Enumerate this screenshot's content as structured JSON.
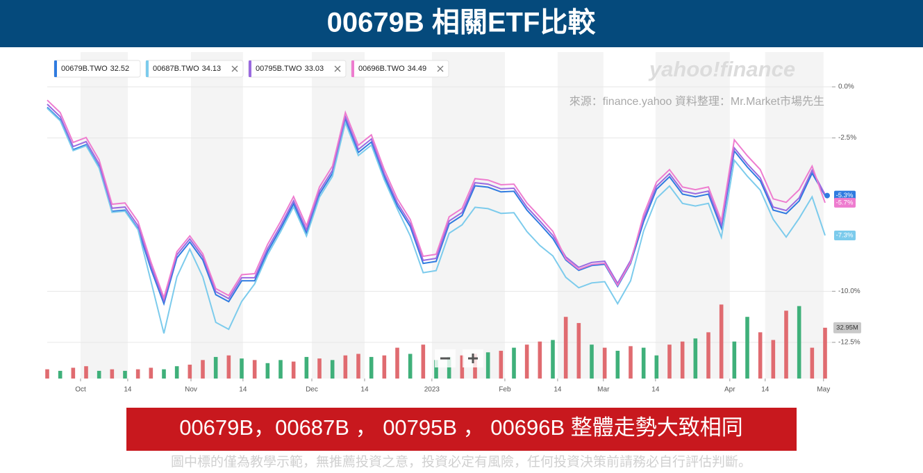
{
  "header": {
    "title": "00679B 相關ETF比較"
  },
  "chart_data": {
    "type": "line",
    "watermark": "yahoo!finance",
    "source": "來源：finance.yahoo 資料整理：Mr.Market市場先生",
    "xlim": [
      0,
      60
    ],
    "xticks": [
      {
        "value": 2.57,
        "label": "Oct"
      },
      {
        "value": 6.21,
        "label": "14"
      },
      {
        "value": 11.09,
        "label": "Nov"
      },
      {
        "value": 15.1,
        "label": "14"
      },
      {
        "value": 20.41,
        "label": "Dec"
      },
      {
        "value": 24.48,
        "label": "14"
      },
      {
        "value": 29.67,
        "label": "2023"
      },
      {
        "value": 35.3,
        "label": "Feb"
      },
      {
        "value": 39.37,
        "label": "14"
      },
      {
        "value": 42.9,
        "label": "Mar"
      },
      {
        "value": 46.92,
        "label": "14"
      },
      {
        "value": 52.65,
        "label": "Apr"
      },
      {
        "value": 55.38,
        "label": "14"
      },
      {
        "value": 59.88,
        "label": "May"
      }
    ],
    "ylim": [
      -14.27,
      1.7
    ],
    "yticks": [
      {
        "value": 0,
        "label": "0.0%"
      },
      {
        "value": -2.5,
        "label": "-2.5%"
      },
      {
        "value": -10,
        "label": "-10.0%"
      },
      {
        "value": -12.5,
        "label": "-12.5%"
      }
    ],
    "grid": true,
    "series": [
      {
        "name": "00679B.TWO",
        "price": 32.52,
        "color": "#2f7be0",
        "end_label": "-5.3%",
        "values": [
          -1.0,
          -1.61,
          -3.07,
          -2.83,
          -3.92,
          -6.09,
          -6.03,
          -6.94,
          -8.91,
          -10.61,
          -8.37,
          -7.59,
          -8.47,
          -10.17,
          -10.51,
          -9.49,
          -9.49,
          -8.06,
          -6.94,
          -5.72,
          -7.15,
          -5.25,
          -4.23,
          -1.61,
          -3.21,
          -2.7,
          -4.4,
          -5.82,
          -6.84,
          -8.64,
          -8.54,
          -6.71,
          -6.3,
          -4.84,
          -4.91,
          -5.14,
          -5.11,
          -6.03,
          -6.71,
          -7.42,
          -8.47,
          -8.98,
          -8.74,
          -8.68,
          -9.76,
          -8.64,
          -6.6,
          -5.01,
          -4.4,
          -5.25,
          -5.38,
          -5.25,
          -6.91,
          -3.14,
          -3.92,
          -4.6,
          -6.03,
          -6.2,
          -5.58,
          -4.23,
          -5.32
        ]
      },
      {
        "name": "00687B.TWO",
        "price": 34.13,
        "color": "#7ccbec",
        "end_label": "-7.3%",
        "values": [
          -1.05,
          -1.66,
          -3.12,
          -2.88,
          -3.97,
          -6.14,
          -6.08,
          -6.99,
          -9.5,
          -12.06,
          -9.3,
          -7.94,
          -9.3,
          -11.52,
          -11.86,
          -10.5,
          -9.64,
          -8.21,
          -7.09,
          -5.87,
          -7.3,
          -5.4,
          -4.38,
          -1.76,
          -3.36,
          -2.85,
          -4.55,
          -5.97,
          -7.29,
          -9.09,
          -8.99,
          -7.16,
          -6.75,
          -5.89,
          -5.96,
          -6.19,
          -6.16,
          -7.08,
          -7.76,
          -8.27,
          -9.32,
          -9.83,
          -9.59,
          -9.53,
          -10.61,
          -9.49,
          -7.05,
          -5.46,
          -4.85,
          -5.7,
          -5.83,
          -5.7,
          -7.36,
          -3.59,
          -4.37,
          -5.05,
          -6.48,
          -7.35,
          -6.43,
          -5.38,
          -7.27
        ]
      },
      {
        "name": "00795B.TWO",
        "price": 33.03,
        "color": "#9a6ae0",
        "values": [
          -0.85,
          -1.46,
          -2.92,
          -2.68,
          -3.77,
          -5.94,
          -5.88,
          -6.79,
          -8.76,
          -10.46,
          -8.22,
          -7.44,
          -8.32,
          -10.02,
          -10.36,
          -9.34,
          -9.34,
          -7.91,
          -6.79,
          -5.57,
          -7.0,
          -5.1,
          -4.08,
          -1.46,
          -3.06,
          -2.55,
          -4.25,
          -5.67,
          -6.69,
          -8.49,
          -8.39,
          -6.56,
          -6.15,
          -4.69,
          -4.76,
          -4.99,
          -4.96,
          -5.88,
          -6.56,
          -7.27,
          -8.32,
          -8.83,
          -8.59,
          -8.53,
          -9.61,
          -8.49,
          -6.45,
          -4.86,
          -4.25,
          -5.1,
          -5.23,
          -5.1,
          -6.76,
          -2.99,
          -3.77,
          -4.45,
          -5.88,
          -6.05,
          -5.43,
          -4.08,
          -5.27
        ]
      },
      {
        "name": "00696B.TWO",
        "price": 34.49,
        "color": "#ee7ccf",
        "end_label": "-5.7%",
        "values": [
          -0.65,
          -1.26,
          -2.72,
          -2.48,
          -3.57,
          -5.74,
          -5.68,
          -6.59,
          -8.56,
          -10.31,
          -8.07,
          -7.29,
          -8.17,
          -9.87,
          -10.21,
          -9.19,
          -9.14,
          -7.71,
          -6.59,
          -5.37,
          -6.8,
          -4.9,
          -3.88,
          -1.26,
          -2.86,
          -2.35,
          -4.05,
          -5.47,
          -6.49,
          -8.29,
          -8.19,
          -6.36,
          -5.95,
          -4.49,
          -4.56,
          -4.79,
          -4.76,
          -5.68,
          -6.36,
          -7.07,
          -8.42,
          -8.93,
          -8.69,
          -8.63,
          -9.71,
          -8.59,
          -6.25,
          -4.66,
          -4.05,
          -4.9,
          -5.03,
          -4.9,
          -6.56,
          -2.59,
          -3.37,
          -4.05,
          -5.48,
          -5.65,
          -5.03,
          -3.88,
          -5.67
        ]
      }
    ],
    "volume": {
      "up_color": "#e06b70",
      "down_color": "#3fb07a",
      "values": [
        6,
        5,
        7,
        8,
        5,
        6,
        5,
        6,
        7,
        6,
        8,
        9,
        12,
        14,
        15,
        13,
        12,
        10,
        12,
        11,
        14,
        13,
        12,
        15,
        16,
        14,
        15,
        20,
        16,
        22,
        12,
        14,
        15,
        16,
        17,
        18,
        20,
        22,
        24,
        25,
        40,
        36,
        22,
        20,
        18,
        21,
        20,
        15,
        22,
        24,
        26,
        30,
        48,
        24,
        40,
        30,
        25,
        44,
        47,
        20,
        32.95
      ],
      "value_labels": {
        "60": "32.95M"
      },
      "up": [
        true,
        false,
        true,
        true,
        false,
        true,
        false,
        true,
        true,
        false,
        false,
        true,
        true,
        false,
        true,
        false,
        true,
        false,
        false,
        true,
        false,
        true,
        false,
        true,
        true,
        false,
        true,
        true,
        false,
        true,
        false,
        false,
        true,
        true,
        false,
        true,
        false,
        true,
        true,
        false,
        true,
        true,
        false,
        true,
        false,
        true,
        false,
        false,
        true,
        true,
        false,
        true,
        true,
        false,
        false,
        true,
        true,
        true,
        false,
        true,
        true
      ]
    }
  },
  "footer": {
    "conclusion": "00679B，00687B ， 00795B ， 00696B 整體走勢大致相同",
    "disclaimer": "圖中標的僅為教學示範，無推薦投資之意，投資必定有風險，任何投資決策前請務必自行評估判斷。"
  }
}
